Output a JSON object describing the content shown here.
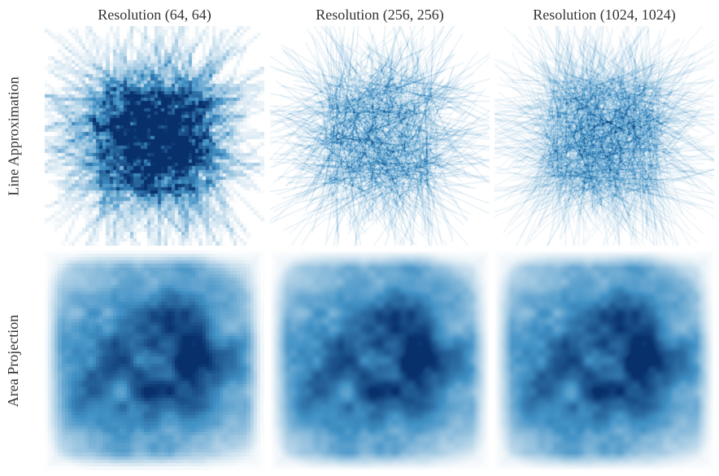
{
  "figure": {
    "column_titles": [
      "Resolution (64, 64)",
      "Resolution (256, 256)",
      "Resolution (1024, 1024)"
    ],
    "row_labels": [
      "Line Approximation",
      "Area Projection"
    ],
    "panels": [
      {
        "row": 0,
        "col": 0,
        "kind": "line-approximation",
        "resolution": 64
      },
      {
        "row": 0,
        "col": 1,
        "kind": "line-approximation",
        "resolution": 256
      },
      {
        "row": 0,
        "col": 2,
        "kind": "line-approximation",
        "resolution": 1024
      },
      {
        "row": 1,
        "col": 0,
        "kind": "area-projection",
        "resolution": 64
      },
      {
        "row": 1,
        "col": 1,
        "kind": "area-projection",
        "resolution": 256
      },
      {
        "row": 1,
        "col": 2,
        "kind": "area-projection",
        "resolution": 1024
      }
    ],
    "colors": {
      "colormap_low": "#ffffff",
      "colormap_high": "#08306b",
      "text": "#333333"
    }
  }
}
